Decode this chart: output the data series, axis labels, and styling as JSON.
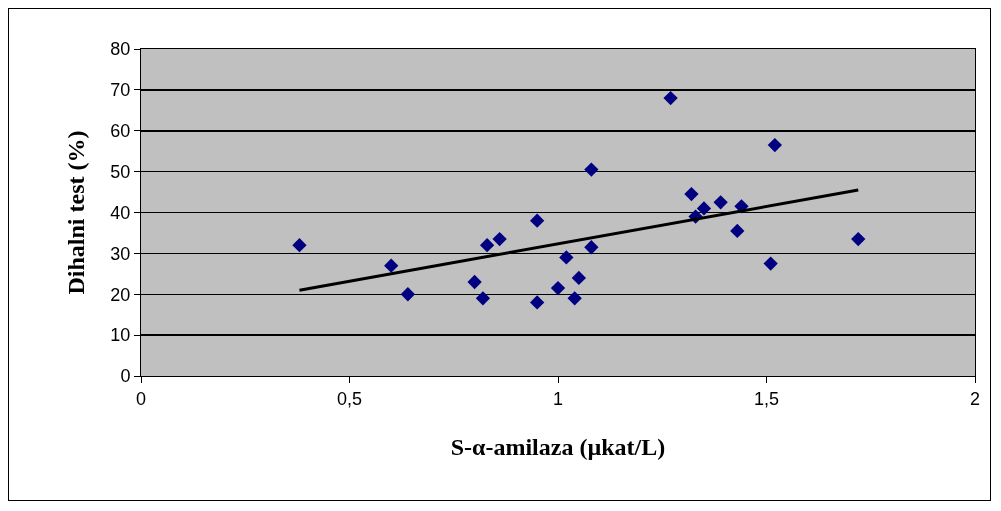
{
  "chart_data": {
    "type": "scatter",
    "xlabel": "S-α-amilaza (µkat/L)",
    "ylabel": "Dihalni test (%)",
    "xlim": [
      0,
      2
    ],
    "xticks": [
      0,
      {
        "value": 0.5,
        "label": "0,5"
      },
      1,
      {
        "value": 1.5,
        "label": "1,5"
      },
      2
    ],
    "ylim": [
      0,
      80
    ],
    "yticks": [
      0,
      10,
      20,
      30,
      40,
      50,
      60,
      70,
      80
    ],
    "grid": "y",
    "marker": "diamond",
    "series": [
      {
        "color": "#000080",
        "x": [
          0.38,
          0.6,
          0.64,
          0.8,
          0.82,
          0.83,
          0.86,
          0.95,
          0.95,
          1.0,
          1.02,
          1.04,
          1.05,
          1.08,
          1.08,
          1.27,
          1.32,
          1.33,
          1.35,
          1.39,
          1.43,
          1.44,
          1.51,
          1.52,
          1.72
        ],
        "values": [
          32,
          27,
          20,
          23,
          19,
          32,
          33.5,
          38,
          18,
          21.5,
          29,
          19,
          24,
          50.5,
          31.5,
          68,
          44.5,
          39,
          41,
          42.5,
          35.5,
          41.5,
          27.5,
          56.5,
          33.5
        ]
      },
      {
        "type": "line",
        "color": "#000000",
        "marker": "none",
        "line_style": "solid",
        "x": [
          0.38,
          1.72
        ],
        "values": [
          21,
          45.5
        ]
      }
    ]
  }
}
